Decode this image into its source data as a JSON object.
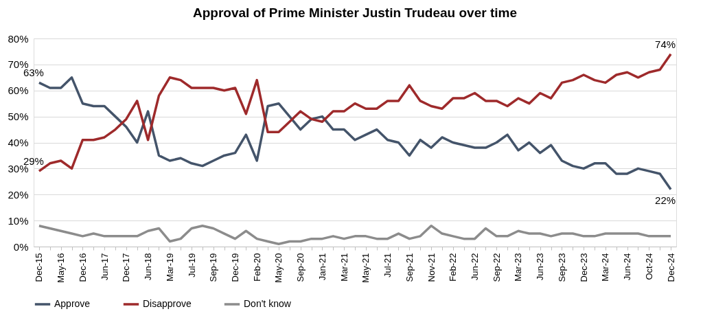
{
  "chart_data": {
    "type": "line",
    "title": "Approval of Prime Minister Justin Trudeau over time",
    "categories": [
      "Dec-15",
      null,
      "May-16",
      null,
      "Dec-16",
      null,
      "Jun-17",
      null,
      "Dec-17",
      null,
      "Jun-18",
      null,
      "Mar-19",
      null,
      "Jul-19",
      null,
      "Sep-19",
      null,
      "Dec-19",
      null,
      "Feb-20",
      null,
      "May-20",
      null,
      "Sep-20",
      null,
      "Jan-21",
      null,
      "Mar-21",
      null,
      "May-21",
      null,
      "Jul-21",
      null,
      "Sep-21",
      null,
      "Nov-21",
      null,
      "Feb-22",
      null,
      "Jun-22",
      null,
      "Sep-22",
      null,
      "Mar-23",
      null,
      "Jun-23",
      null,
      "Sep-23",
      null,
      "Dec-23",
      null,
      "Mar-24",
      null,
      "Jun-24",
      null,
      "Oct-24",
      null,
      "Dec-24"
    ],
    "series": [
      {
        "name": "Approve",
        "color": "#44546a",
        "values": [
          63,
          61,
          61,
          65,
          55,
          54,
          54,
          50,
          46,
          40,
          52,
          35,
          33,
          34,
          32,
          31,
          33,
          35,
          36,
          43,
          33,
          54,
          55,
          50,
          45,
          49,
          50,
          45,
          45,
          41,
          43,
          45,
          41,
          40,
          35,
          41,
          38,
          42,
          40,
          39,
          38,
          38,
          40,
          43,
          37,
          40,
          36,
          39,
          33,
          31,
          30,
          32,
          32,
          28,
          28,
          30,
          29,
          28,
          22
        ],
        "value_labels": [
          "63%",
          null,
          null,
          null,
          null,
          null,
          null,
          null,
          null,
          null,
          null,
          null,
          null,
          null,
          null,
          null,
          null,
          null,
          null,
          null,
          null,
          null,
          null,
          null,
          null,
          null,
          null,
          null,
          null,
          null,
          null,
          null,
          null,
          null,
          null,
          null,
          null,
          null,
          null,
          null,
          null,
          null,
          null,
          null,
          null,
          null,
          null,
          null,
          null,
          null,
          null,
          null,
          null,
          null,
          null,
          null,
          null,
          null,
          "22%"
        ]
      },
      {
        "name": "Disapprove",
        "color": "#9e2a2b",
        "values": [
          29,
          32,
          33,
          30,
          41,
          41,
          42,
          45,
          49,
          56,
          41,
          58,
          65,
          64,
          61,
          61,
          61,
          60,
          61,
          51,
          64,
          44,
          44,
          48,
          52,
          49,
          48,
          52,
          52,
          55,
          53,
          53,
          56,
          56,
          62,
          56,
          54,
          53,
          57,
          57,
          59,
          56,
          56,
          54,
          57,
          55,
          59,
          57,
          63,
          64,
          66,
          64,
          63,
          66,
          67,
          65,
          67,
          68,
          74
        ],
        "value_labels": [
          "29%",
          null,
          null,
          null,
          null,
          null,
          null,
          null,
          null,
          null,
          null,
          null,
          null,
          null,
          null,
          null,
          null,
          null,
          null,
          null,
          null,
          null,
          null,
          null,
          null,
          null,
          null,
          null,
          null,
          null,
          null,
          null,
          null,
          null,
          null,
          null,
          null,
          null,
          null,
          null,
          null,
          null,
          null,
          null,
          null,
          null,
          null,
          null,
          null,
          null,
          null,
          null,
          null,
          null,
          null,
          null,
          null,
          null,
          "74%"
        ]
      },
      {
        "name": "Don't know",
        "color": "#8c8c8c",
        "values": [
          8,
          7,
          6,
          5,
          4,
          5,
          4,
          4,
          4,
          4,
          6,
          7,
          2,
          3,
          7,
          8,
          7,
          5,
          3,
          6,
          3,
          2,
          1,
          2,
          2,
          3,
          3,
          4,
          3,
          4,
          4,
          3,
          3,
          5,
          3,
          4,
          8,
          5,
          4,
          3,
          3,
          7,
          4,
          4,
          6,
          5,
          5,
          4,
          5,
          5,
          4,
          4,
          5,
          5,
          5,
          5,
          4,
          4,
          4
        ]
      }
    ],
    "ylim": [
      0,
      80
    ],
    "yticks": [
      {
        "value": 0,
        "label": "0%"
      },
      {
        "value": 10,
        "label": "10%"
      },
      {
        "value": 20,
        "label": "20%"
      },
      {
        "value": 30,
        "label": "30%"
      },
      {
        "value": 40,
        "label": "40%"
      },
      {
        "value": 50,
        "label": "50%"
      },
      {
        "value": 60,
        "label": "60%"
      },
      {
        "value": 70,
        "label": "70%"
      },
      {
        "value": 80,
        "label": "80%"
      }
    ],
    "grid": "y",
    "legend": "bottom",
    "marker": "none",
    "line_style": "solid"
  }
}
